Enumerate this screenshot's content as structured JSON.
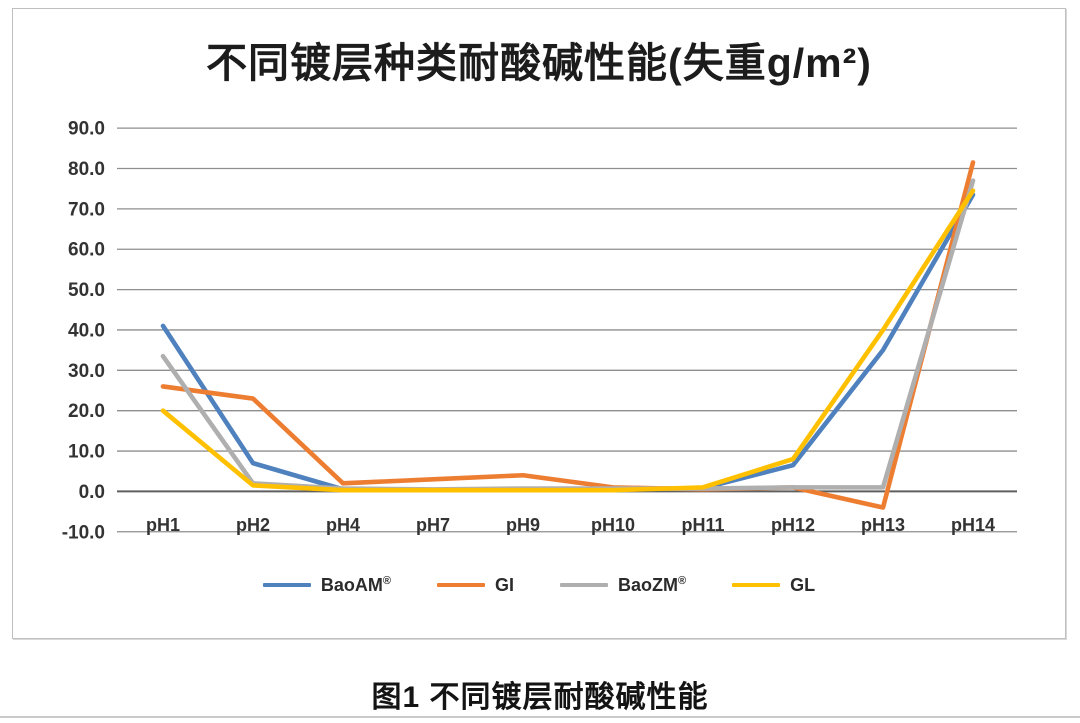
{
  "figure": {
    "caption": "图1 不同镀层耐酸碱性能"
  },
  "chart_data": {
    "type": "line",
    "title": "不同镀层种类耐酸碱性能(失重g/m²)",
    "categories": [
      "pH1",
      "pH2",
      "pH4",
      "pH7",
      "pH9",
      "pH10",
      "pH11",
      "pH12",
      "pH13",
      "pH14"
    ],
    "series": [
      {
        "name": "BaoAM®",
        "legend_label": "BaoAM",
        "legend_sup": "®",
        "color": "#4E81BD",
        "values": [
          41.0,
          7.0,
          0.5,
          0.3,
          0.3,
          0.5,
          0.8,
          6.5,
          35.0,
          73.5
        ]
      },
      {
        "name": "GI",
        "legend_label": "GI",
        "legend_sup": "",
        "color": "#ED7D31",
        "values": [
          26.0,
          23.0,
          2.0,
          3.0,
          4.0,
          1.0,
          0.5,
          1.0,
          -4.0,
          81.5
        ]
      },
      {
        "name": "BaoZM®",
        "legend_label": "BaoZM",
        "legend_sup": "®",
        "color": "#AFAFAF",
        "values": [
          33.5,
          2.0,
          0.7,
          0.5,
          0.7,
          0.7,
          0.7,
          1.0,
          1.0,
          77.0
        ]
      },
      {
        "name": "GL",
        "legend_label": "GL",
        "legend_sup": "",
        "color": "#FFC000",
        "values": [
          20.0,
          1.5,
          0.3,
          0.3,
          0.3,
          0.3,
          1.0,
          8.0,
          40.0,
          74.5
        ]
      }
    ],
    "ylim": [
      -10,
      90
    ],
    "ytick_labels": [
      "90.0",
      "80.0",
      "70.0",
      "60.0",
      "50.0",
      "40.0",
      "30.0",
      "20.0",
      "10.0",
      "0.0",
      "-10.0"
    ],
    "grid": true,
    "legend_position": "bottom",
    "xlabel": "",
    "ylabel": ""
  },
  "colors": {
    "gridline": "#8e8e8e",
    "zero_axis": "#5f5f5f",
    "axis_text": "#333333",
    "frame_border": "#bfbfbf",
    "separator": "#c9c9c9"
  }
}
